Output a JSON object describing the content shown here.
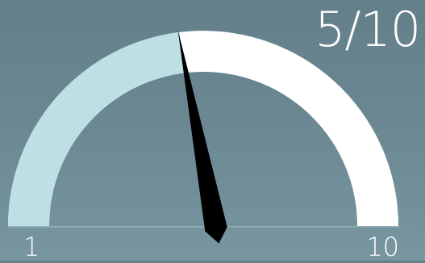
{
  "gauge": {
    "score_text": "5/10",
    "min_label": "1",
    "max_label": "10",
    "min": 1,
    "max": 10,
    "value": 5,
    "needle_angle_deg": 97,
    "filled_color": "#bde0e4",
    "empty_color": "#ffffff",
    "needle_color": "#000000",
    "baseline_color": "#a9c6cd"
  }
}
